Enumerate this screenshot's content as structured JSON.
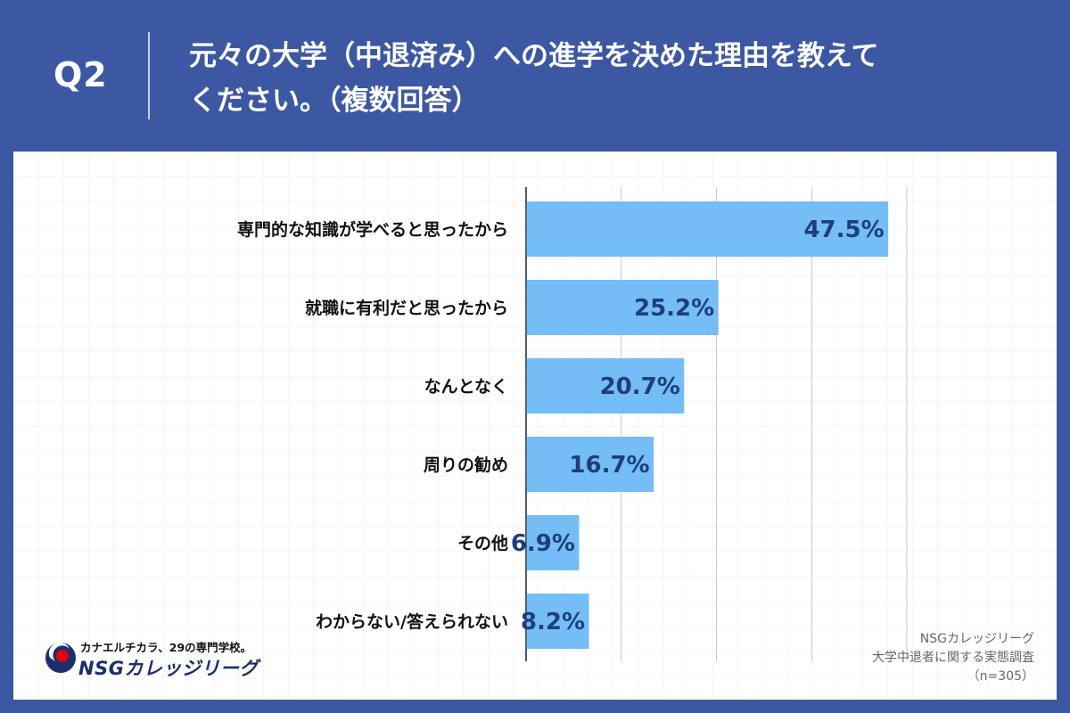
{
  "header": {
    "question_number": "Q2",
    "question_line1": "元々の大学（中退済み）への進学を決めた理由を教えて",
    "question_line2": "ください。（複数回答）"
  },
  "chart_data": {
    "type": "bar",
    "orientation": "horizontal",
    "categories": [
      "専門的な知識が学べると思ったから",
      "就職に有利だと思ったから",
      "なんとなく",
      "周りの勧め",
      "その他",
      "わからない/答えられない"
    ],
    "values": [
      47.5,
      25.2,
      20.7,
      16.7,
      6.9,
      8.2
    ],
    "value_labels": [
      "47.5%",
      "25.2%",
      "20.7%",
      "16.7%",
      "6.9%",
      "8.2%"
    ],
    "unit": "%",
    "xlim": [
      0,
      50
    ],
    "gridlines": [
      0,
      12.5,
      25,
      37.5,
      50
    ],
    "grid": true,
    "bar_color": "#74bdf7",
    "label_color": "#1f3e7a"
  },
  "footer": {
    "logo_tagline": "カナエルチカラ、29の専門学校。",
    "logo_name": "NSGカレッジリーグ",
    "source_line1": "NSGカレッジリーグ",
    "source_line2": "大学中退者に関する実態調査",
    "source_line3": "（n=305）"
  },
  "colors": {
    "background": "#3d58a3",
    "panel": "#ffffff",
    "bar": "#74bdf7",
    "logo_red": "#e60012",
    "logo_blue": "#1a2f6b"
  }
}
